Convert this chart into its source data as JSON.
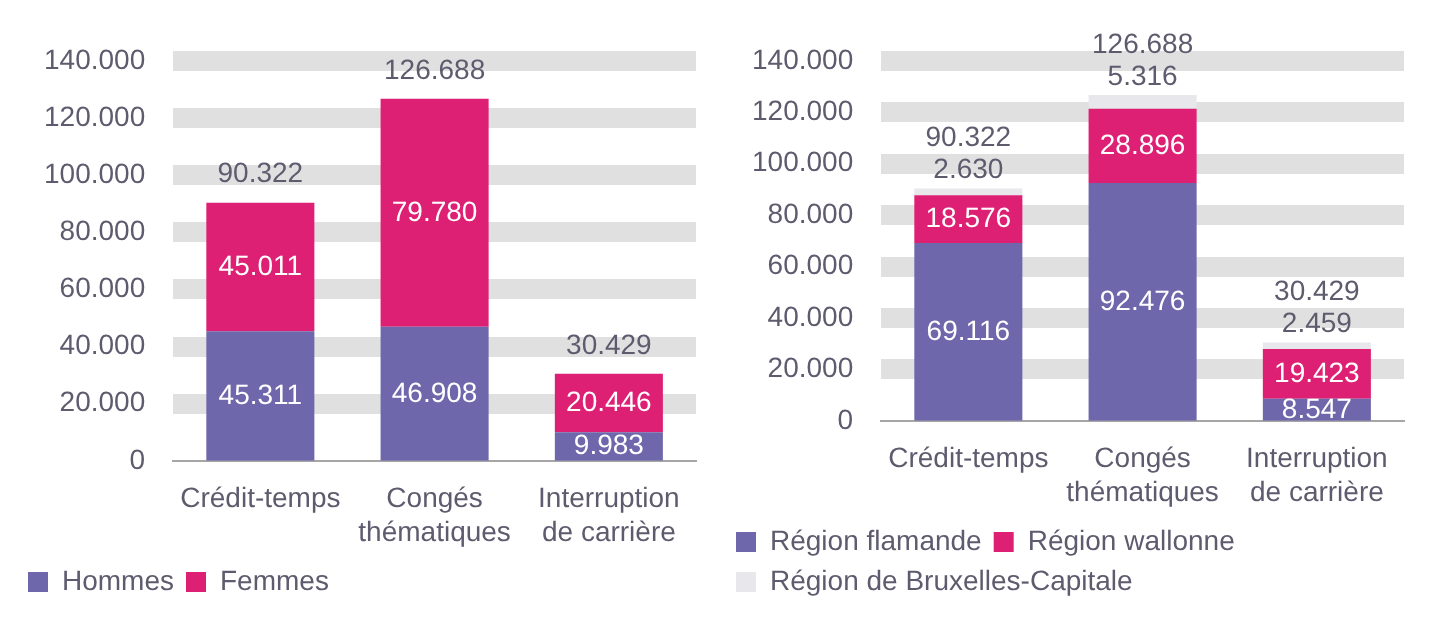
{
  "chart_data": [
    {
      "type": "bar",
      "stacked": true,
      "categories": [
        "Crédit-temps",
        "Congés thématiques",
        "Interruption de carrière"
      ],
      "series": [
        {
          "name": "Hommes",
          "color": "#6e67ab",
          "values": [
            45311,
            46908,
            9983
          ],
          "value_labels": [
            "45.311",
            "46.908",
            "9.983"
          ]
        },
        {
          "name": "Femmes",
          "color": "#dd2073",
          "values": [
            45011,
            79780,
            20446
          ],
          "value_labels": [
            "45.011",
            "79.780",
            "20.446"
          ]
        }
      ],
      "ylim": [
        0,
        140000
      ],
      "yticks": [
        {
          "value": 0,
          "label": "0"
        },
        {
          "value": 20000,
          "label": "20.000"
        },
        {
          "value": 40000,
          "label": "40.000"
        },
        {
          "value": 60000,
          "label": "60.000"
        },
        {
          "value": 80000,
          "label": "80.000"
        },
        {
          "value": 100000,
          "label": "100.000"
        },
        {
          "value": 120000,
          "label": "120.000"
        },
        {
          "value": 140000,
          "label": "140.000"
        }
      ],
      "grid": "y",
      "legend": "bottom",
      "totals": [
        "90.322",
        "126.688",
        "30.429"
      ]
    },
    {
      "type": "bar",
      "stacked": true,
      "categories": [
        "Crédit-temps",
        "Congés thématiques",
        "Interruption de carrière"
      ],
      "series": [
        {
          "name": "Région flamande",
          "color": "#6e67ab",
          "values": [
            69116,
            92476,
            8547
          ],
          "value_labels": [
            "69.116",
            "92.476",
            "8.547"
          ]
        },
        {
          "name": "Région wallonne",
          "color": "#dd2073",
          "values": [
            18576,
            28896,
            19423
          ],
          "value_labels": [
            "18.576",
            "28.896",
            "19.423"
          ]
        },
        {
          "name": "Région de Bruxelles-Capitale",
          "color": "#e8e8ec",
          "values": [
            2630,
            5316,
            2459
          ],
          "value_labels": [
            "2.630",
            "5.316",
            "2.459"
          ]
        }
      ],
      "ylim": [
        0,
        140000
      ],
      "yticks": [
        {
          "value": 0,
          "label": "0"
        },
        {
          "value": 20000,
          "label": "20.000"
        },
        {
          "value": 40000,
          "label": "40.000"
        },
        {
          "value": 60000,
          "label": "60.000"
        },
        {
          "value": 80000,
          "label": "80.000"
        },
        {
          "value": 100000,
          "label": "100.000"
        },
        {
          "value": 120000,
          "label": "120.000"
        },
        {
          "value": 140000,
          "label": "140.000"
        }
      ],
      "grid": "y",
      "legend": "bottom",
      "totals": [
        "90.322",
        "126.688",
        "30.429"
      ]
    }
  ]
}
